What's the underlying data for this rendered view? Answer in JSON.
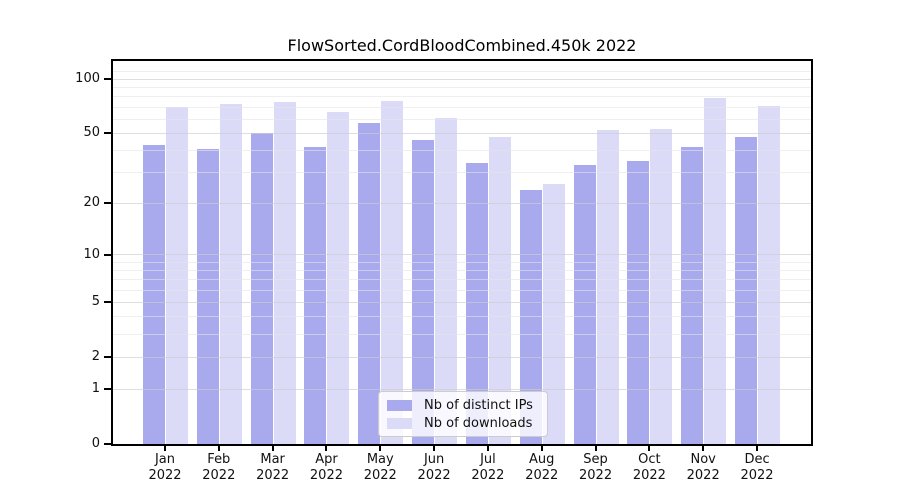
{
  "title": "FlowSorted.CordBloodCombined.450k 2022",
  "chart_data": {
    "type": "bar",
    "title": "FlowSorted.CordBloodCombined.450k 2022",
    "categories": [
      "Jan",
      "Feb",
      "Mar",
      "Apr",
      "May",
      "Jun",
      "Jul",
      "Aug",
      "Sep",
      "Oct",
      "Nov",
      "Dec"
    ],
    "x_tick_year_line": "2022",
    "series": [
      {
        "id": "distinct-ips",
        "name": "Nb of distinct IPs",
        "color": "#a9a9ee",
        "values": [
          43,
          41,
          50,
          42,
          57,
          46,
          34,
          24,
          33,
          35,
          42,
          48
        ]
      },
      {
        "id": "downloads",
        "name": "Nb of downloads",
        "color": "#dbdbf8",
        "values": [
          70,
          73,
          75,
          66,
          76,
          61,
          48,
          26,
          52,
          53,
          79,
          71
        ]
      }
    ],
    "y_scale": "log1p",
    "ylim": [
      0,
      126
    ],
    "y_major_ticks": [
      0,
      1,
      2,
      5,
      10,
      20,
      50,
      100
    ],
    "y_minor_gridlines": [
      3,
      4,
      6,
      7,
      8,
      9,
      30,
      40,
      60,
      70,
      80,
      90,
      110
    ],
    "grid": true,
    "legend_position": "lower center"
  },
  "colors": {
    "background": "#ffffff",
    "axis": "#000000",
    "major_grid": "#d9d9d9",
    "minor_grid": "#ececec"
  }
}
